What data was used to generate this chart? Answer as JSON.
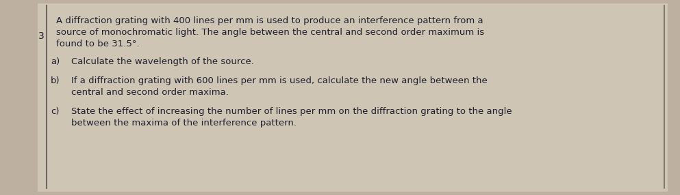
{
  "background_color": "#cec5b5",
  "page_background": "#bdb0a0",
  "border_color": "#706860",
  "question_number": "3",
  "intro_line1": "A diffraction grating with 400 lines per mm is used to produce an interference pattern from a",
  "intro_line2": "source of monochromatic light. The angle between the central and second order maximum is",
  "intro_line3": "found to be 31.5°.",
  "part_a_label": "a)",
  "part_a_text": "Calculate the wavelength of the source.",
  "part_b_label": "b)",
  "part_b_line1": "If a diffraction grating with 600 lines per mm is used, calculate the new angle between the",
  "part_b_line2": "central and second order maxima.",
  "part_c_label": "c)",
  "part_c_line1": "State the effect of increasing the number of lines per mm on the diffraction grating to the angle",
  "part_c_line2": "between the maxima of the interference pattern.",
  "font_size_main": 9.5,
  "font_size_number": 10,
  "text_color": "#1e1e2e"
}
